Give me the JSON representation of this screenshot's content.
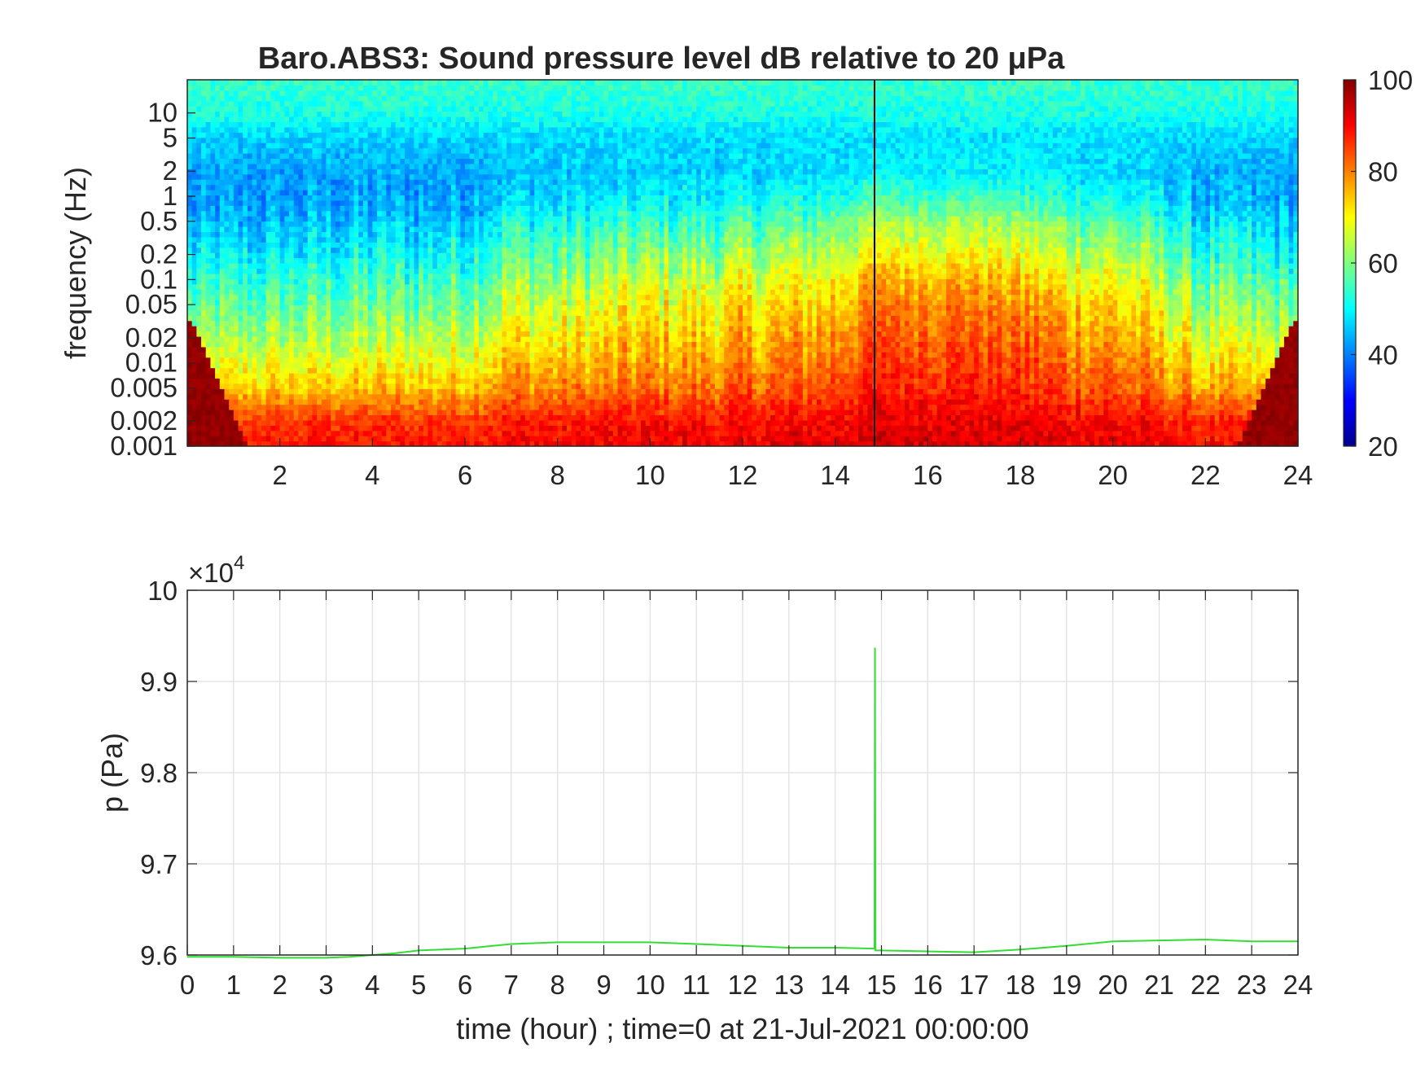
{
  "colors": {
    "pressure_line": "#33dd33",
    "spike_line": "#000000",
    "colormap": "jet",
    "axes": "#262626",
    "grid": "#dfdfdf"
  },
  "charts": {
    "top": {
      "title": "Baro.ABS3: Sound pressure level dB relative to 20 μPa",
      "ylabel": "frequency (Hz)"
    },
    "colorbar": {
      "ticks": [
        "100",
        "80",
        "60",
        "40",
        "20"
      ]
    },
    "bottom": {
      "ylabel": "p (Pa)",
      "xlabel": "time (hour) ; time=0 at 21-Jul-2021 00:00:00",
      "exponent_prefix": "×10",
      "exponent_power": "4"
    }
  },
  "chart_data": [
    {
      "type": "heatmap",
      "title": "Baro.ABS3: Sound pressure level dB relative to 20 μPa",
      "xlabel": "",
      "ylabel": "frequency (Hz)",
      "x_unit": "hour",
      "xlim": [
        0,
        24
      ],
      "x_ticks": [
        2,
        4,
        6,
        8,
        10,
        12,
        14,
        16,
        18,
        20,
        22,
        24
      ],
      "y_scale": "log",
      "ylim": [
        0.001,
        25
      ],
      "y_ticks": [
        0.001,
        0.002,
        0.005,
        0.01,
        0.02,
        0.05,
        0.1,
        0.2,
        0.5,
        1,
        2,
        5,
        10
      ],
      "y_tick_labels": [
        "0.001",
        "0.002",
        "0.005",
        "0.01",
        "0.02",
        "0.05",
        "0.1",
        "0.2",
        "0.5",
        "1",
        "2",
        "5",
        "10"
      ],
      "colorbar": {
        "label": "",
        "range": [
          20,
          100
        ],
        "ticks": [
          20,
          40,
          60,
          80,
          100
        ],
        "colormap": "jet"
      },
      "approx_level_profile_dB": {
        "frequencies_hz": [
          0.001,
          0.002,
          0.005,
          0.01,
          0.02,
          0.05,
          0.1,
          0.2,
          0.5,
          1,
          2,
          5,
          10,
          20
        ],
        "quiet_hours_0_to_7": [
          88,
          85,
          72,
          66,
          60,
          54,
          50,
          46,
          42,
          40,
          42,
          46,
          52,
          54
        ],
        "active_hours_15_to_18": [
          94,
          92,
          89,
          87,
          85,
          82,
          78,
          72,
          64,
          56,
          50,
          48,
          52,
          54
        ]
      },
      "annotations": [
        {
          "x": 14.85,
          "note": "vertical transient line across all frequencies"
        }
      ],
      "grid": false
    },
    {
      "type": "line",
      "title": "",
      "xlabel": "time (hour) ; time=0 at 21-Jul-2021 00:00:00",
      "ylabel": "p (Pa)",
      "y_multiplier": "×10^4",
      "xlim": [
        0,
        24
      ],
      "ylim": [
        9.6,
        10
      ],
      "x_ticks": [
        0,
        1,
        2,
        3,
        4,
        5,
        6,
        7,
        8,
        9,
        10,
        11,
        12,
        13,
        14,
        15,
        16,
        17,
        18,
        19,
        20,
        21,
        22,
        23,
        24
      ],
      "y_ticks": [
        9.6,
        9.7,
        9.8,
        9.9,
        10
      ],
      "grid": true,
      "series": [
        {
          "color": "#33dd33",
          "x": [
            0,
            1,
            2,
            3,
            3.5,
            4,
            4.5,
            5,
            6,
            7,
            8,
            9,
            10,
            11,
            12,
            13,
            14,
            14.85,
            14.86,
            14.87,
            14.88,
            15,
            16,
            17,
            18,
            19,
            20,
            21,
            22,
            23,
            24
          ],
          "y": [
            9.598,
            9.598,
            9.597,
            9.597,
            9.598,
            9.6,
            9.602,
            9.605,
            9.607,
            9.612,
            9.614,
            9.614,
            9.614,
            9.612,
            9.61,
            9.608,
            9.608,
            9.607,
            9.937,
            9.605,
            9.605,
            9.605,
            9.604,
            9.603,
            9.606,
            9.61,
            9.615,
            9.616,
            9.617,
            9.615,
            9.615
          ]
        }
      ]
    }
  ]
}
